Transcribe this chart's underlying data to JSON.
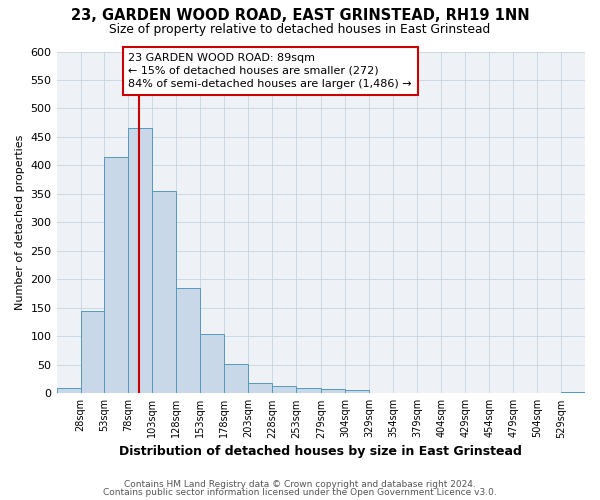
{
  "title1": "23, GARDEN WOOD ROAD, EAST GRINSTEAD, RH19 1NN",
  "title2": "Size of property relative to detached houses in East Grinstead",
  "xlabel": "Distribution of detached houses by size in East Grinstead",
  "ylabel": "Number of detached properties",
  "bin_edges": [
    3,
    28,
    53,
    78,
    103,
    128,
    153,
    178,
    203,
    228,
    253,
    279,
    304,
    329,
    354,
    379,
    404,
    429,
    454,
    479,
    504,
    529,
    554
  ],
  "bin_heights": [
    10,
    145,
    415,
    465,
    355,
    185,
    105,
    52,
    18,
    13,
    10,
    7,
    5,
    1,
    1,
    1,
    0,
    0,
    0,
    0,
    0,
    3
  ],
  "bar_color": "#c8d8e8",
  "bar_edge_color": "#5599bb",
  "vline_color": "#cc0000",
  "vline_x": 89,
  "annotation_line1": "23 GARDEN WOOD ROAD: 89sqm",
  "annotation_line2": "← 15% of detached houses are smaller (272)",
  "annotation_line3": "84% of semi-detached houses are larger (1,486) →",
  "annotation_box_color": "#cc0000",
  "ylim": [
    0,
    600
  ],
  "yticks": [
    0,
    50,
    100,
    150,
    200,
    250,
    300,
    350,
    400,
    450,
    500,
    550,
    600
  ],
  "xtick_labels": [
    "28sqm",
    "53sqm",
    "78sqm",
    "103sqm",
    "128sqm",
    "153sqm",
    "178sqm",
    "203sqm",
    "228sqm",
    "253sqm",
    "279sqm",
    "304sqm",
    "329sqm",
    "354sqm",
    "379sqm",
    "404sqm",
    "429sqm",
    "454sqm",
    "479sqm",
    "504sqm",
    "529sqm"
  ],
  "xtick_positions": [
    28,
    53,
    78,
    103,
    128,
    153,
    178,
    203,
    228,
    253,
    279,
    304,
    329,
    354,
    379,
    404,
    429,
    454,
    479,
    504,
    529
  ],
  "grid_color": "#c8d4e0",
  "background_color": "#eef2f7",
  "footer1": "Contains HM Land Registry data © Crown copyright and database right 2024.",
  "footer2": "Contains public sector information licensed under the Open Government Licence v3.0."
}
